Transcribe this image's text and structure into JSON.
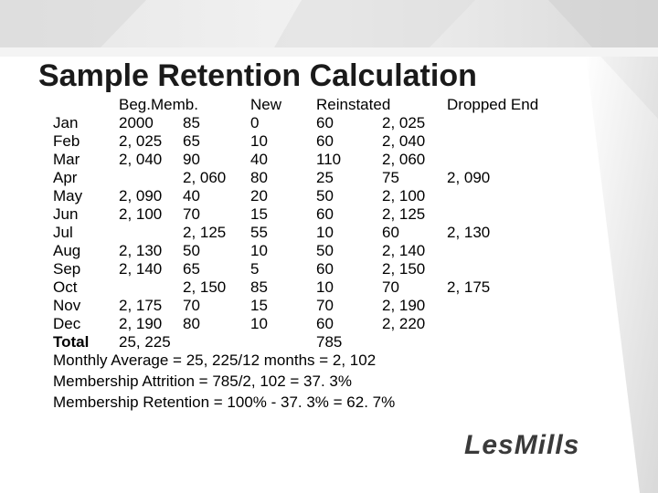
{
  "slide": {
    "title": "Sample Retention Calculation",
    "headers": {
      "beg": "Beg.Memb.",
      "new": "New",
      "reinstated": "Reinstated",
      "dropped_end": "Dropped End"
    },
    "rows": [
      {
        "month": "Jan",
        "beg": "2000",
        "c2": "85",
        "new": "0",
        "rein": "60",
        "rein2": "2, 025",
        "de": ""
      },
      {
        "month": "Feb",
        "beg": "2, 025",
        "c2": "65",
        "new": "10",
        "rein": "60",
        "rein2": "2, 040",
        "de": ""
      },
      {
        "month": "Mar",
        "beg": "2, 040",
        "c2": "90",
        "new": "40",
        "rein": "110",
        "rein2": "2, 060",
        "de": ""
      },
      {
        "month": "Apr",
        "beg": "",
        "c2": "2, 060",
        "new": "80",
        "rein": "25",
        "rein2": "75",
        "de": "2, 090"
      },
      {
        "month": "May",
        "beg": "2, 090",
        "c2": "40",
        "new": "20",
        "rein": "50",
        "rein2": "2, 100",
        "de": ""
      },
      {
        "month": "Jun",
        "beg": "2, 100",
        "c2": "70",
        "new": "15",
        "rein": "60",
        "rein2": "2, 125",
        "de": ""
      },
      {
        "month": "Jul",
        "beg": "",
        "c2": "2, 125",
        "new": "55",
        "rein": "10",
        "rein2": "60",
        "de": "2, 130"
      },
      {
        "month": "Aug",
        "beg": "2, 130",
        "c2": "50",
        "new": "10",
        "rein": "50",
        "rein2": "2, 140",
        "de": ""
      },
      {
        "month": "Sep",
        "beg": "2, 140",
        "c2": "65",
        "new": "5",
        "rein": "60",
        "rein2": "2, 150",
        "de": ""
      },
      {
        "month": "Oct",
        "beg": "",
        "c2": "2, 150",
        "new": "85",
        "rein": "10",
        "rein2": "70",
        "de": "2, 175"
      },
      {
        "month": "Nov",
        "beg": "2, 175",
        "c2": "70",
        "new": "15",
        "rein": "70",
        "rein2": "2, 190",
        "de": ""
      },
      {
        "month": "Dec",
        "beg": "2, 190",
        "c2": "80",
        "new": "10",
        "rein": "60",
        "rein2": "2, 220",
        "de": ""
      }
    ],
    "total": {
      "label": "Total",
      "beg": "25, 225",
      "rein": "785"
    },
    "footer": [
      "Monthly Average = 25, 225/12 months = 2, 102",
      "Membership Attrition = 785/2, 102 = 37. 3%",
      "Membership Retention = 100% - 37. 3% = 62. 7%"
    ],
    "logo_text": "LesMills"
  }
}
